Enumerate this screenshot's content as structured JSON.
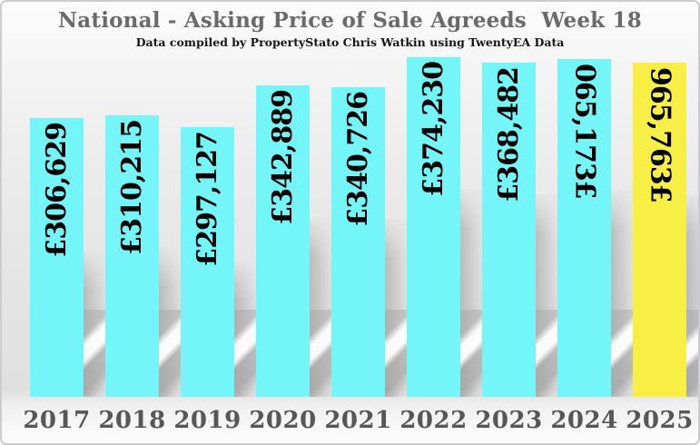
{
  "chart_data": {
    "type": "bar",
    "title": "National - Asking Price of Sale Agreeds  Week 18",
    "subtitle": "Data compiled by PropertyStato Chris Watkin using TwentyEA Data",
    "categories": [
      "2017",
      "2018",
      "2019",
      "2020",
      "2021",
      "2022",
      "2023",
      "2024",
      "2025"
    ],
    "values": [
      306629,
      310215,
      297127,
      342889,
      340726,
      374230,
      368482,
      371560,
      367569
    ],
    "bar_labels": [
      "£306,629",
      "£310,215",
      "£297,127",
      "£342,889",
      "£340,726",
      "£374,230",
      "£368,482",
      "£371,560",
      "£367,569"
    ],
    "xlabel": "",
    "ylabel": "",
    "ylim": [
      0,
      380000
    ],
    "gridlines": false,
    "legend": "none",
    "orientation": "vertical",
    "highlight_index": 8,
    "flipped_label_indices": [
      7,
      8
    ],
    "colors": {
      "bar": "#74f6f8",
      "highlight_bar": "#f7ef46",
      "bar_label_text": "#000000",
      "title_text": "#6a6a6a",
      "axis_text": "#575757"
    }
  }
}
